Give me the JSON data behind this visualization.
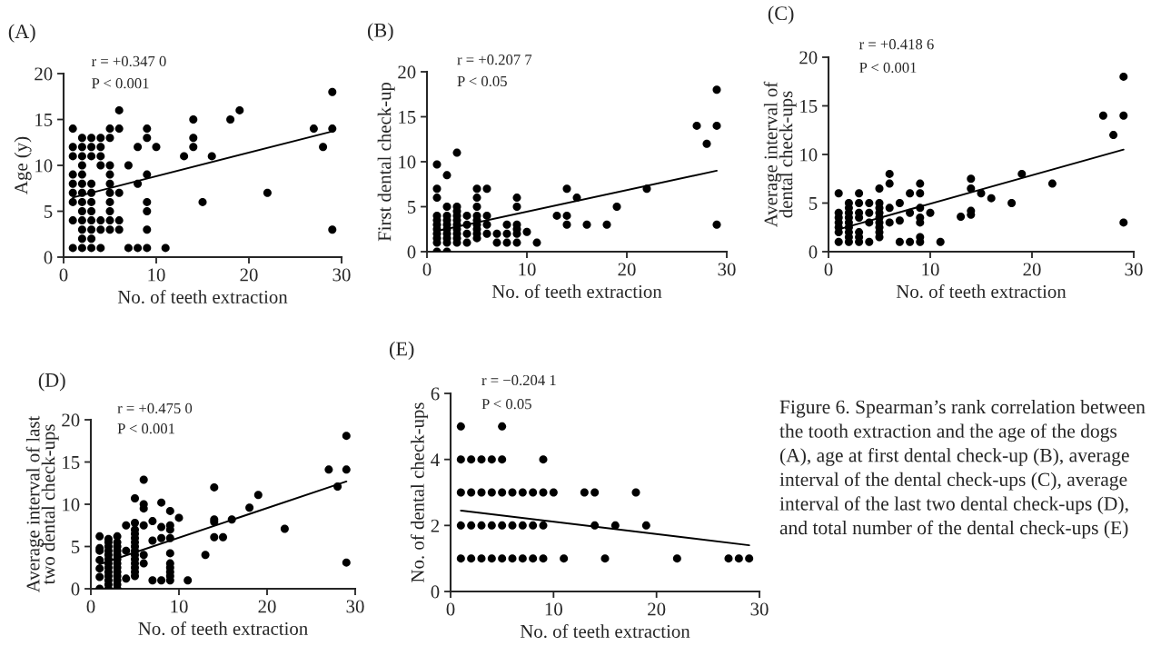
{
  "chart_data": [
    {
      "type": "scatter",
      "title": "(A)",
      "xlabel": "No. of teeth extraction",
      "ylabel": "Age (y)",
      "xlim": [
        0,
        30
      ],
      "xticks": [
        0,
        10,
        20,
        30
      ],
      "ylim": [
        0,
        20
      ],
      "yticks": [
        0,
        5,
        10,
        15,
        20
      ],
      "marker": "circle",
      "annotations": [
        "r = +0.347 0",
        "P < 0.001"
      ],
      "series": [
        {
          "type": "scatter",
          "color": "#000000",
          "x": [
            1,
            1,
            1,
            1,
            1,
            1,
            1,
            1,
            1,
            2,
            2,
            2,
            2,
            2,
            2,
            2,
            2,
            2,
            2,
            2,
            2,
            2,
            3,
            3,
            3,
            3,
            3,
            3,
            3,
            3,
            3,
            3,
            3,
            4,
            4,
            4,
            4,
            4,
            4,
            4,
            5,
            5,
            5,
            5,
            5,
            5,
            5,
            5,
            5,
            5,
            6,
            6,
            6,
            6,
            6,
            7,
            7,
            8,
            8,
            8,
            9,
            9,
            9,
            9,
            9,
            9,
            9,
            10,
            11,
            13,
            14,
            14,
            14,
            15,
            16,
            18,
            19,
            22,
            27,
            28,
            29,
            29,
            29
          ],
          "values": [
            14,
            12,
            11,
            9,
            8,
            7,
            6,
            4,
            1,
            13,
            12,
            11,
            10,
            9,
            8,
            7,
            6,
            5,
            4,
            3,
            2,
            1,
            13,
            12,
            11,
            8,
            7,
            6,
            5,
            4,
            3,
            2,
            1,
            13,
            12,
            11,
            10,
            4,
            3,
            1,
            14,
            13,
            10,
            9,
            8,
            7,
            6,
            5,
            4,
            3,
            16,
            14,
            7,
            4,
            3,
            10,
            1,
            12,
            8,
            1,
            14,
            13,
            9,
            6,
            5,
            3,
            1,
            12,
            1,
            11,
            15,
            13,
            12,
            6,
            11,
            15,
            16,
            7,
            14,
            12,
            18,
            14,
            3
          ]
        },
        {
          "type": "line",
          "color": "#000000",
          "x": [
            1,
            29
          ],
          "values": [
            6.5,
            13.7
          ],
          "marker": "none"
        }
      ]
    },
    {
      "type": "scatter",
      "title": "(B)",
      "xlabel": "No. of teeth extraction",
      "ylabel": "First dental check-up",
      "xlim": [
        0,
        30
      ],
      "xticks": [
        0,
        10,
        20,
        30
      ],
      "ylim": [
        0,
        20
      ],
      "yticks": [
        0,
        5,
        10,
        15,
        20
      ],
      "marker": "circle",
      "annotations": [
        "r = +0.207 7",
        "P < 0.05"
      ],
      "series": [
        {
          "type": "scatter",
          "color": "#000000",
          "x": [
            1,
            1,
            1,
            1,
            1,
            1,
            1,
            1,
            1,
            1,
            1,
            2,
            2,
            2,
            2,
            2,
            2,
            2,
            2,
            2,
            2,
            3,
            3,
            3,
            3,
            3,
            3,
            3,
            3,
            3,
            3,
            4,
            4,
            4,
            4,
            5,
            5,
            5,
            5,
            5,
            5,
            5,
            5,
            5,
            6,
            6,
            6,
            6,
            7,
            7,
            8,
            8,
            8,
            9,
            9,
            9,
            9,
            9,
            9,
            10,
            11,
            13,
            14,
            14,
            14,
            15,
            16,
            18,
            19,
            22,
            27,
            28,
            29,
            29,
            29
          ],
          "values": [
            9.7,
            7,
            6,
            4,
            3.5,
            3,
            2.5,
            2,
            1.5,
            1,
            0,
            8.5,
            5,
            4,
            3.5,
            3,
            2.5,
            2,
            1.5,
            1,
            0,
            11,
            5,
            4.5,
            4,
            3.5,
            3,
            2.5,
            2,
            1.5,
            1,
            4,
            3,
            2,
            1,
            7,
            6,
            5,
            4,
            3.5,
            3,
            2.5,
            2,
            1.5,
            7,
            4,
            3,
            2,
            2,
            1,
            3,
            2,
            1,
            6,
            5,
            3,
            2.5,
            2,
            1,
            2.2,
            1,
            4,
            7,
            4,
            3,
            6,
            3,
            3,
            5,
            7,
            14,
            12,
            18,
            14,
            3
          ]
        },
        {
          "type": "line",
          "color": "#000000",
          "x": [
            1,
            29
          ],
          "values": [
            2.3,
            9
          ],
          "marker": "none"
        }
      ]
    },
    {
      "type": "scatter",
      "title": "(C)",
      "xlabel": "No. of teeth extraction",
      "ylabel": "Average interval of dental check-ups",
      "xlim": [
        0,
        30
      ],
      "xticks": [
        0,
        10,
        20,
        30
      ],
      "ylim": [
        0,
        20
      ],
      "yticks": [
        0,
        5,
        10,
        15,
        20
      ],
      "marker": "circle",
      "annotations": [
        "r = +0.418 6",
        "P < 0.001"
      ],
      "series": [
        {
          "type": "scatter",
          "color": "#000000",
          "x": [
            1,
            1,
            1,
            1,
            1,
            1,
            1,
            2,
            2,
            2,
            2,
            2,
            2,
            2,
            2,
            2,
            3,
            3,
            3,
            3,
            3,
            3,
            3,
            4,
            4,
            4,
            4,
            5,
            5,
            5,
            5,
            5,
            5,
            5,
            5,
            5,
            6,
            6,
            6,
            6,
            7,
            7,
            7,
            8,
            8,
            8,
            9,
            9,
            9,
            9,
            9,
            9,
            9,
            10,
            11,
            13,
            14,
            14,
            14,
            14,
            15,
            16,
            18,
            19,
            22,
            27,
            28,
            29,
            29,
            29
          ],
          "values": [
            6,
            4,
            3.5,
            3,
            2.5,
            2,
            1,
            5,
            4.5,
            4,
            3.5,
            3,
            2.5,
            2,
            1.5,
            1,
            6,
            5,
            4,
            3.5,
            2,
            1.5,
            1,
            5,
            4,
            3,
            1,
            6.5,
            5,
            4.5,
            4,
            3.5,
            3,
            2.5,
            2,
            1.5,
            8,
            7,
            4.5,
            3,
            5,
            3.2,
            1,
            6,
            4,
            1,
            7,
            6,
            4.5,
            3.5,
            3,
            1.5,
            1,
            4,
            1,
            3.6,
            7.5,
            6.5,
            4.2,
            3.8,
            6,
            5.5,
            5,
            8,
            7,
            14,
            12,
            18,
            14,
            3
          ]
        },
        {
          "type": "line",
          "color": "#000000",
          "x": [
            1,
            29
          ],
          "values": [
            2.3,
            10.5
          ],
          "marker": "none"
        }
      ]
    },
    {
      "type": "scatter",
      "title": "(D)",
      "xlabel": "No. of teeth extraction",
      "ylabel": "Average interval of last two dental check-ups",
      "xlim": [
        0,
        30
      ],
      "xticks": [
        0,
        10,
        20,
        30
      ],
      "ylim": [
        0,
        20
      ],
      "yticks": [
        0,
        5,
        10,
        15,
        20
      ],
      "marker": "circle",
      "annotations": [
        "r = +0.475 0",
        "P < 0.001"
      ],
      "series": [
        {
          "type": "scatter",
          "color": "#000000",
          "x": [
            1,
            1,
            1,
            1,
            1,
            1,
            1,
            2,
            2,
            2,
            2,
            2,
            2,
            2,
            2,
            2,
            2,
            2,
            2,
            2,
            3,
            3,
            3,
            3,
            3,
            3,
            3,
            3,
            3,
            3,
            3,
            3,
            3,
            4,
            4,
            4,
            5,
            5,
            5,
            5,
            5,
            5,
            5,
            5,
            5,
            5,
            5,
            5,
            5,
            5,
            6,
            6,
            6,
            6,
            6,
            6,
            7,
            7,
            7,
            8,
            8,
            8,
            8,
            9,
            9,
            9,
            9,
            9,
            9,
            9,
            9,
            9,
            9,
            10,
            11,
            13,
            14,
            14,
            14,
            14,
            15,
            16,
            18,
            19,
            22,
            27,
            28,
            29,
            29,
            29
          ],
          "values": [
            6.2,
            4.8,
            4.5,
            3.4,
            2.4,
            1.4,
            0,
            5.9,
            5.5,
            5,
            4.5,
            4,
            3.5,
            3,
            2.5,
            2,
            1.5,
            1,
            0.5,
            0,
            6.2,
            5.5,
            5,
            4.5,
            4,
            3.5,
            3,
            2.5,
            2,
            1.5,
            1,
            0.5,
            0,
            7.5,
            4.5,
            1.2,
            10.7,
            7.8,
            7,
            6.5,
            6,
            5.5,
            5,
            4.5,
            4,
            3.5,
            3,
            2.5,
            2,
            1.5,
            12.9,
            10,
            9.5,
            7.5,
            4,
            3,
            8,
            5.7,
            1,
            10.2,
            7.3,
            6,
            1,
            9.2,
            7.5,
            7,
            6,
            4.2,
            3,
            2.5,
            2,
            1.5,
            1,
            8.4,
            1,
            4,
            12,
            8.2,
            7.9,
            6.1,
            6.1,
            8.2,
            9.6,
            11.1,
            7.1,
            14.1,
            12.1,
            18.1,
            14.1,
            3.1
          ]
        },
        {
          "type": "line",
          "color": "#000000",
          "x": [
            1,
            29
          ],
          "values": [
            2.9,
            12.7
          ],
          "marker": "none"
        }
      ]
    },
    {
      "type": "scatter",
      "title": "(E)",
      "xlabel": "No. of teeth extraction",
      "ylabel": "No. of dental check-ups",
      "xlim": [
        0,
        30
      ],
      "xticks": [
        0,
        10,
        20,
        30
      ],
      "ylim": [
        0,
        6
      ],
      "yticks": [
        0,
        2,
        4,
        6
      ],
      "marker": "circle",
      "annotations": [
        "r = −0.204 1",
        "P < 0.05"
      ],
      "series": [
        {
          "type": "scatter",
          "color": "#000000",
          "x": [
            1,
            1,
            1,
            1,
            1,
            2,
            2,
            2,
            2,
            3,
            3,
            3,
            3,
            4,
            4,
            4,
            4,
            5,
            5,
            5,
            5,
            5,
            6,
            6,
            6,
            7,
            7,
            7,
            8,
            8,
            8,
            9,
            9,
            9,
            9,
            10,
            11,
            13,
            14,
            14,
            15,
            16,
            18,
            19,
            22,
            27,
            28,
            29
          ],
          "values": [
            5,
            4,
            3,
            2,
            1,
            4,
            3,
            2,
            1,
            4,
            3,
            2,
            1,
            4,
            3,
            2,
            1,
            5,
            4,
            3,
            2,
            1,
            3,
            2,
            1,
            3,
            2,
            1,
            3,
            2,
            1,
            4,
            3,
            2,
            1,
            3,
            1,
            3,
            3,
            2,
            1,
            2,
            3,
            2,
            1,
            1,
            1,
            1
          ]
        },
        {
          "type": "line",
          "color": "#000000",
          "x": [
            1,
            29
          ],
          "values": [
            2.45,
            1.4
          ],
          "marker": "none"
        }
      ]
    },
    {
      "type": "other",
      "annotations": [
        "Figure 6. Spearman’s rank correlation between the tooth extraction and the age of the dogs (A), age at first dental check-up (B), average interval of the dental check-ups (C), average interval of the last two dental check-ups (D), and total number of the dental check-ups (E)"
      ]
    }
  ]
}
